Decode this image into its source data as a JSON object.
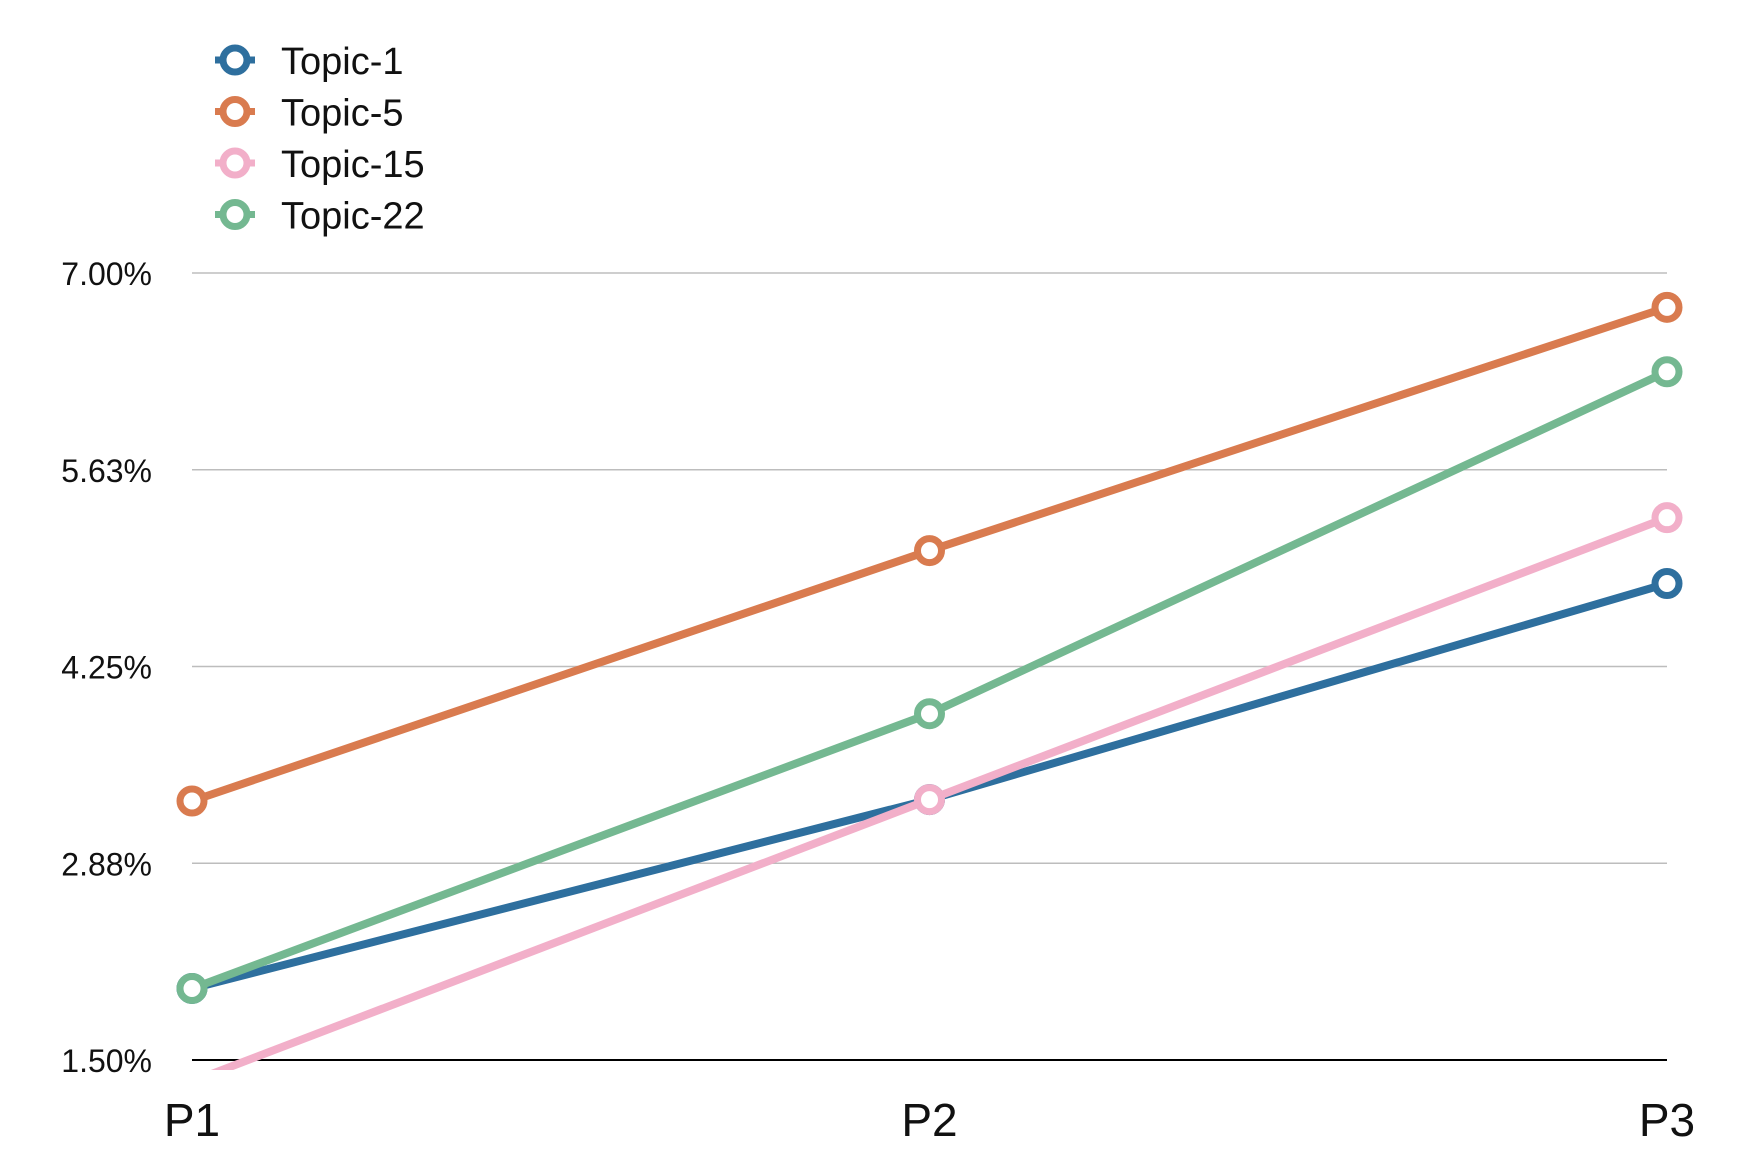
{
  "chart_data": {
    "type": "line",
    "title": "",
    "xlabel": "",
    "ylabel": "",
    "categories": [
      "P1",
      "P2",
      "P3"
    ],
    "y_ticks": [
      "1.50%",
      "2.88%",
      "4.25%",
      "5.63%",
      "7.00%"
    ],
    "ylim": [
      1.5,
      7.0
    ],
    "grid": true,
    "legend": "top-left",
    "series": [
      {
        "name": "Topic-1",
        "color": "#2e6f9e",
        "values": [
          2.0,
          3.32,
          4.83
        ]
      },
      {
        "name": "Topic-5",
        "color": "#d97b4f",
        "values": [
          3.31,
          5.06,
          6.76
        ]
      },
      {
        "name": "Topic-15",
        "color": "#f2afc9",
        "values": [
          1.35,
          3.32,
          5.29
        ]
      },
      {
        "name": "Topic-22",
        "color": "#74b891",
        "values": [
          2.0,
          3.92,
          6.31
        ]
      }
    ]
  }
}
